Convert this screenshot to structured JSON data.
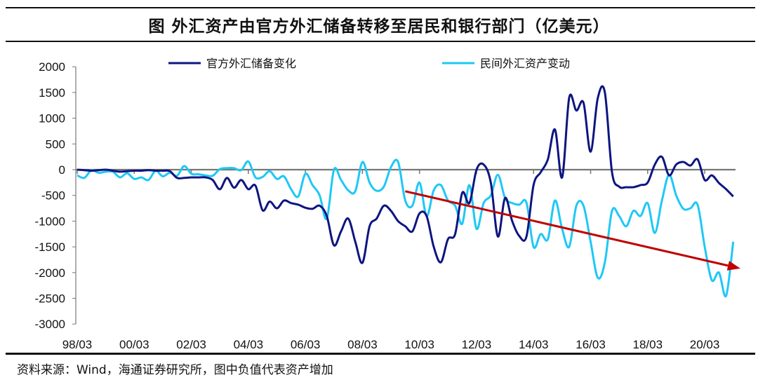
{
  "chart_data": {
    "type": "line",
    "title": "图  外汇资产由官方外汇储备转移至居民和银行部门（亿美元）",
    "source": "资料来源：Wind，海通证券研究所，图中负值代表资产增加",
    "ylim": [
      -3000,
      2000
    ],
    "y_ticks": [
      "2000",
      "1500",
      "1000",
      "500",
      "0",
      "-500",
      "-1000",
      "-1500",
      "-2000",
      "-2500",
      "-3000"
    ],
    "x_ticks": [
      "98/03",
      "00/03",
      "02/03",
      "04/03",
      "06/03",
      "08/03",
      "10/03",
      "12/03",
      "14/03",
      "16/03",
      "18/03",
      "20/03"
    ],
    "x_start": "1998-03",
    "x_frequency": "quarterly",
    "legend_position": "top",
    "grid": false,
    "series": [
      {
        "name": "官方外汇储备变化",
        "color": "#0d1580",
        "values": [
          0,
          -10,
          -20,
          -10,
          0,
          -20,
          -40,
          -30,
          -20,
          -20,
          -10,
          -20,
          -20,
          -30,
          -160,
          -160,
          -150,
          -150,
          -150,
          -200,
          -380,
          -160,
          -350,
          -200,
          -380,
          -310,
          -790,
          -620,
          -750,
          -600,
          -650,
          -680,
          -740,
          -760,
          -700,
          -900,
          -1470,
          -1200,
          -950,
          -1400,
          -1810,
          -1100,
          -950,
          -700,
          -800,
          -1000,
          -1100,
          -1200,
          -850,
          -900,
          -1500,
          -1800,
          -1350,
          -1250,
          -450,
          -650,
          0,
          100,
          -250,
          -1300,
          -550,
          -1000,
          -1290,
          -1300,
          -300,
          -50,
          200,
          780,
          -150,
          1400,
          1150,
          1300,
          350,
          1390,
          1500,
          -50,
          -330,
          -340,
          -340,
          -300,
          -250,
          100,
          250,
          -110,
          100,
          150,
          80,
          200,
          -200,
          -110,
          -260,
          -380,
          -520
        ]
      },
      {
        "name": "民间外汇资产变动",
        "color": "#1ec8f5",
        "values": [
          -110,
          -160,
          -10,
          -60,
          -40,
          -40,
          -150,
          -70,
          -180,
          -150,
          -200,
          -20,
          -130,
          -60,
          -120,
          70,
          -80,
          -90,
          -110,
          -120,
          10,
          30,
          30,
          -10,
          160,
          -150,
          -140,
          -30,
          -180,
          -130,
          -380,
          -520,
          -80,
          -300,
          -500,
          -950,
          0,
          -200,
          -400,
          -420,
          150,
          -250,
          -410,
          -330,
          50,
          150,
          -600,
          -700,
          -250,
          -900,
          -400,
          -300,
          -600,
          -700,
          -1050,
          -300,
          -1150,
          -650,
          -500,
          -100,
          -550,
          -650,
          -680,
          -640,
          -1500,
          -1250,
          -1350,
          -600,
          -1150,
          -1500,
          -700,
          -700,
          -1400,
          -2100,
          -1800,
          -800,
          -900,
          -1100,
          -800,
          -900,
          -650,
          -1230,
          -600,
          -100,
          -500,
          -760,
          -750,
          -680,
          -1500,
          -2150,
          -2000,
          -2450,
          -1400
        ]
      }
    ],
    "annotations": [
      {
        "type": "arrow",
        "color": "#c00000",
        "from": {
          "x": "2009-09",
          "y": -420
        },
        "to": {
          "x": "2021-06",
          "y": -1920
        }
      }
    ]
  }
}
